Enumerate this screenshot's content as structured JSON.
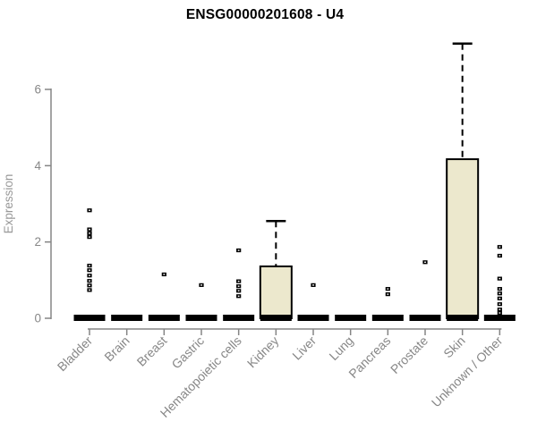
{
  "chart_data": {
    "type": "boxplot",
    "title": "ENSG00000201608 - U4",
    "xlabel": "",
    "ylabel": "Expression",
    "yticks": [
      0,
      2,
      4,
      6
    ],
    "ylim": [
      0,
      7.4
    ],
    "grid": false,
    "legend": "none",
    "categories": [
      "Bladder",
      "Brain",
      "Breast",
      "Gastric",
      "Hematopoietic cells",
      "Kidney",
      "Liver",
      "Lung",
      "Pancreas",
      "Prostate",
      "Skin",
      "Unknown / Other"
    ],
    "boxes": [
      {
        "category": "Bladder",
        "q1": 0,
        "median": 0,
        "q3": 0,
        "whisker_low": 0,
        "whisker_high": 0,
        "outliers": [
          2.83,
          2.33,
          2.23,
          2.13,
          1.38,
          1.26,
          1.12,
          0.98,
          0.86,
          0.74
        ]
      },
      {
        "category": "Brain",
        "q1": 0,
        "median": 0,
        "q3": 0,
        "whisker_low": 0,
        "whisker_high": 0,
        "outliers": []
      },
      {
        "category": "Breast",
        "q1": 0,
        "median": 0,
        "q3": 0,
        "whisker_low": 0,
        "whisker_high": 0,
        "outliers": [
          1.15
        ]
      },
      {
        "category": "Gastric",
        "q1": 0,
        "median": 0,
        "q3": 0,
        "whisker_low": 0,
        "whisker_high": 0,
        "outliers": [
          0.87
        ]
      },
      {
        "category": "Hematopoietic cells",
        "q1": 0,
        "median": 0,
        "q3": 0,
        "whisker_low": 0,
        "whisker_high": 0,
        "outliers": [
          1.78,
          0.97,
          0.84,
          0.72,
          0.58
        ]
      },
      {
        "category": "Kidney",
        "q1": 0,
        "median": 0,
        "q3": 1.36,
        "whisker_low": 0,
        "whisker_high": 2.55,
        "outliers": []
      },
      {
        "category": "Liver",
        "q1": 0,
        "median": 0,
        "q3": 0,
        "whisker_low": 0,
        "whisker_high": 0,
        "outliers": [
          0.87
        ]
      },
      {
        "category": "Lung",
        "q1": 0,
        "median": 0,
        "q3": 0,
        "whisker_low": 0,
        "whisker_high": 0,
        "outliers": []
      },
      {
        "category": "Pancreas",
        "q1": 0,
        "median": 0,
        "q3": 0,
        "whisker_low": 0,
        "whisker_high": 0,
        "outliers": [
          0.77,
          0.63
        ]
      },
      {
        "category": "Prostate",
        "q1": 0,
        "median": 0,
        "q3": 0,
        "whisker_low": 0,
        "whisker_high": 0,
        "outliers": [
          1.47
        ]
      },
      {
        "category": "Skin",
        "q1": 0,
        "median": 0,
        "q3": 4.17,
        "whisker_low": 0,
        "whisker_high": 7.2,
        "outliers": []
      },
      {
        "category": "Unknown / Other",
        "q1": 0,
        "median": 0,
        "q3": 0,
        "whisker_low": 0,
        "whisker_high": 0,
        "outliers": [
          1.87,
          1.64,
          1.04,
          0.77,
          0.65,
          0.52,
          0.37,
          0.23,
          0.14
        ]
      }
    ],
    "colors": {
      "background": "#ffffff",
      "box_fill": "#ece8cd",
      "box_stroke": "#000000",
      "median": "#000000",
      "outlier": "#000000",
      "axis": "#858585",
      "tick_label": "#878787",
      "axis_title": "#989898",
      "title": "#000000"
    }
  }
}
